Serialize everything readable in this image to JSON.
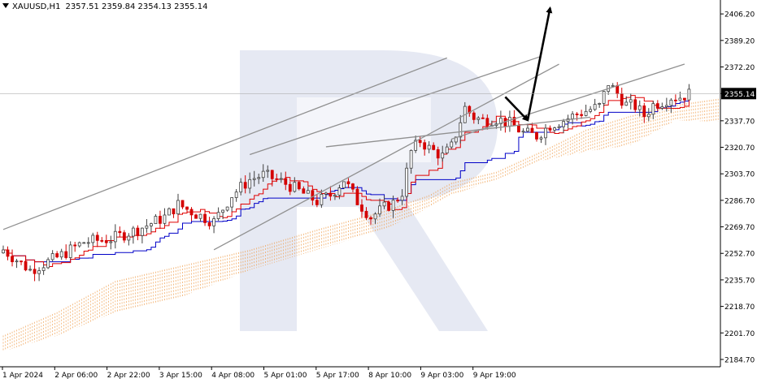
{
  "header": {
    "symbol": "XAUUSD,H1",
    "open": "2357.51",
    "high": "2359.84",
    "low": "2354.13",
    "close": "2355.14"
  },
  "colors": {
    "bull_candle": "#404040",
    "bear_candle": "#d40000",
    "tenkan": "#e00000",
    "kijun": "#0000c8",
    "cloud": "#f0a050",
    "channel": "#909090",
    "watermark": "#dde2ef",
    "price_tag_bg": "#000000"
  },
  "chart_data": {
    "type": "candlestick",
    "timeframe": "H1",
    "y_axis": {
      "ticks": [
        "2406.20",
        "2389.20",
        "2372.20",
        "2355.14",
        "2337.70",
        "2320.70",
        "2303.70",
        "2286.70",
        "2269.70",
        "2252.70",
        "2235.70",
        "2218.70",
        "2201.70",
        "2184.70"
      ],
      "range": [
        2180,
        2412
      ],
      "current_price": "2355.14"
    },
    "x_axis": {
      "labels": [
        "1 Apr 2024",
        "2 Apr 06:00",
        "2 Apr 22:00",
        "3 Apr 15:00",
        "4 Apr 08:00",
        "5 Apr 01:00",
        "5 Apr 17:00",
        "8 Apr 10:00",
        "9 Apr 03:00",
        "9 Apr 19:00"
      ]
    },
    "price_path": [
      [
        0,
        2255
      ],
      [
        6,
        2242
      ],
      [
        12,
        2250
      ],
      [
        18,
        2260
      ],
      [
        24,
        2262
      ],
      [
        30,
        2268
      ],
      [
        36,
        2276
      ],
      [
        39,
        2284
      ],
      [
        43,
        2278
      ],
      [
        47,
        2273
      ],
      [
        51,
        2290
      ],
      [
        55,
        2300
      ],
      [
        58,
        2303
      ],
      [
        61,
        2300
      ],
      [
        64,
        2296
      ],
      [
        67,
        2291
      ],
      [
        70,
        2286
      ],
      [
        73,
        2290
      ],
      [
        76,
        2300
      ],
      [
        79,
        2286
      ],
      [
        82,
        2276
      ],
      [
        85,
        2282
      ],
      [
        87,
        2285
      ],
      [
        89,
        2292
      ],
      [
        91,
        2318
      ],
      [
        93,
        2325
      ],
      [
        95,
        2320
      ],
      [
        98,
        2315
      ],
      [
        100,
        2321
      ],
      [
        103,
        2346
      ],
      [
        105,
        2340
      ],
      [
        107,
        2338
      ],
      [
        110,
        2339
      ],
      [
        113,
        2336
      ],
      [
        116,
        2330
      ],
      [
        119,
        2328
      ],
      [
        122,
        2335
      ],
      [
        125,
        2338
      ],
      [
        128,
        2342
      ],
      [
        131,
        2345
      ],
      [
        133,
        2347
      ],
      [
        135,
        2362
      ],
      [
        137,
        2355
      ],
      [
        139,
        2348
      ],
      [
        141,
        2347
      ],
      [
        143,
        2341
      ],
      [
        145,
        2348
      ],
      [
        147,
        2350
      ],
      [
        149,
        2353
      ],
      [
        151,
        2353
      ],
      [
        153,
        2355
      ]
    ],
    "indicators": {
      "cloud_upper": [
        [
          0,
          2200
        ],
        [
          12,
          2215
        ],
        [
          25,
          2235
        ],
        [
          40,
          2245
        ],
        [
          55,
          2255
        ],
        [
          70,
          2268
        ],
        [
          85,
          2280
        ],
        [
          95,
          2290
        ],
        [
          100,
          2298
        ],
        [
          110,
          2305
        ],
        [
          120,
          2318
        ],
        [
          130,
          2332
        ],
        [
          140,
          2341
        ],
        [
          150,
          2348
        ],
        [
          160,
          2352
        ]
      ],
      "cloud_lower": [
        [
          0,
          2190
        ],
        [
          12,
          2200
        ],
        [
          25,
          2215
        ],
        [
          40,
          2225
        ],
        [
          55,
          2242
        ],
        [
          70,
          2255
        ],
        [
          85,
          2268
        ],
        [
          95,
          2282
        ],
        [
          100,
          2290
        ],
        [
          110,
          2300
        ],
        [
          120,
          2312
        ],
        [
          130,
          2318
        ],
        [
          140,
          2322
        ],
        [
          150,
          2338
        ],
        [
          160,
          2337
        ]
      ]
    },
    "annotations": {
      "channel_lines": [
        {
          "from": [
            0,
            2268
          ],
          "to": [
            99,
            2378
          ]
        },
        {
          "from": [
            55,
            2316
          ],
          "to": [
            120,
            2379
          ]
        },
        {
          "from": [
            100,
            2326
          ],
          "to": [
            152,
            2374
          ]
        },
        {
          "from": [
            72,
            2321
          ],
          "to": [
            131,
            2340
          ]
        },
        {
          "from": [
            47,
            2255
          ],
          "to": [
            124,
            2374
          ]
        }
      ],
      "forecast_arrows": [
        {
          "from": [
            112,
            2353
          ],
          "to": [
            117,
            2338
          ]
        },
        {
          "from": [
            117,
            2338
          ],
          "to": [
            122,
            2410
          ]
        }
      ]
    }
  }
}
